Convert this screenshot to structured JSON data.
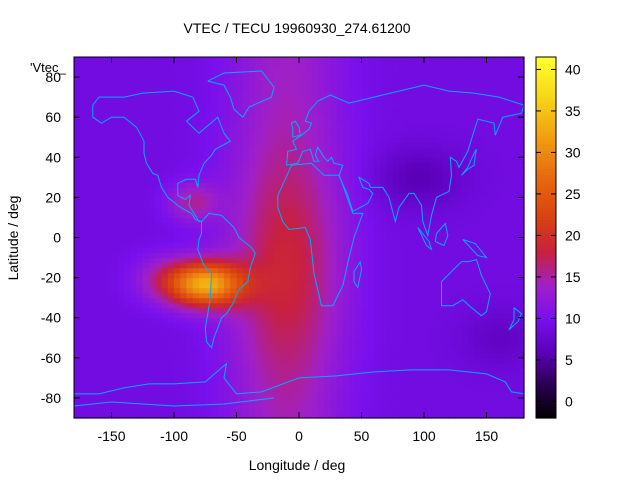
{
  "chart_data": {
    "type": "heatmap",
    "title": "VTEC / TECU 19960930_274.61200",
    "xlabel": "Longitude / deg",
    "ylabel": "Latitude / deg",
    "series_label": "'Vtec_",
    "xlim": [
      -180,
      180
    ],
    "ylim": [
      -90,
      90
    ],
    "x_ticks": [
      -150,
      -100,
      -50,
      0,
      50,
      100,
      150
    ],
    "y_ticks": [
      -80,
      -60,
      -40,
      -20,
      0,
      20,
      40,
      60,
      80
    ],
    "colorbar": {
      "range": [
        -2,
        41.5
      ],
      "ticks": [
        0,
        5,
        10,
        15,
        20,
        25,
        30,
        35,
        40
      ]
    },
    "field_features": {
      "background_tec": 9,
      "peak": {
        "lon": -75,
        "lat": -23,
        "tec": 40
      },
      "afternoon_band_lon_range": [
        -60,
        40
      ],
      "band_tec": 17
    },
    "coastline_color": "#00aaff",
    "palette_stops": [
      {
        "v": -2,
        "color": "#000000"
      },
      {
        "v": 2,
        "color": "#2a0050"
      },
      {
        "v": 6,
        "color": "#5a00b8"
      },
      {
        "v": 10,
        "color": "#7a10ee"
      },
      {
        "v": 14,
        "color": "#a020c8"
      },
      {
        "v": 18,
        "color": "#c82040"
      },
      {
        "v": 22,
        "color": "#d84010"
      },
      {
        "v": 27,
        "color": "#e86810"
      },
      {
        "v": 32,
        "color": "#f0a010"
      },
      {
        "v": 37,
        "color": "#f8d818"
      },
      {
        "v": 41.5,
        "color": "#ffff30"
      }
    ]
  }
}
